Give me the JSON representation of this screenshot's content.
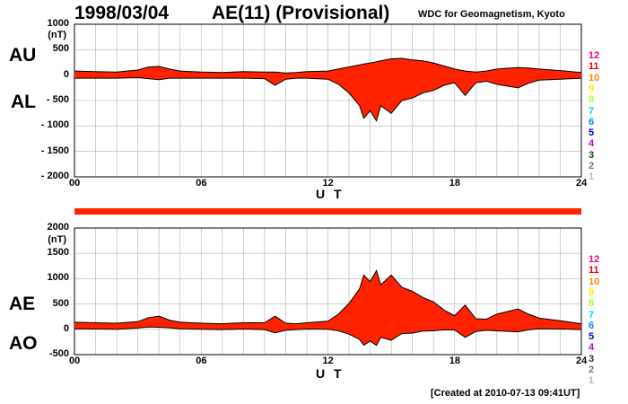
{
  "header": {
    "date": "1998/03/04",
    "title": "AE(11) (Provisional)",
    "institution": "WDC for Geomagnetism, Kyoto"
  },
  "footer": {
    "created": "[Created at 2010-07-13 09:41UT]"
  },
  "colors": {
    "fill": "#ff2200",
    "line": "#000000",
    "grid": "#b0b0b0",
    "bar": "#ff2200"
  },
  "station_count_scale": {
    "labels": [
      "12",
      "11",
      "10",
      "9",
      "8",
      "7",
      "6",
      "5",
      "4",
      "3",
      "2",
      "1"
    ],
    "colors": [
      "#ff0088",
      "#ee0000",
      "#ff8800",
      "#ffee00",
      "#aaff33",
      "#00dddd",
      "#0088ff",
      "#0000cc",
      "#cc00cc",
      "#333333",
      "#777777",
      "#bbbbbb"
    ]
  },
  "chart_data": [
    {
      "type": "area",
      "panel": "upper",
      "left_labels": [
        "AU",
        "AL"
      ],
      "unit": "(nT)",
      "xlabel": "U T",
      "xlim": [
        0,
        24
      ],
      "xticks": [
        "00",
        "06",
        "12",
        "18",
        "24"
      ],
      "ylim": [
        -2000,
        1000
      ],
      "yticks": [
        "1000",
        "500",
        "0",
        "- 500",
        "- 1000",
        "- 1500",
        "- 2000"
      ],
      "grid": true,
      "x": [
        0,
        1,
        2,
        3,
        3.5,
        4,
        4.5,
        5,
        6,
        7,
        8,
        9,
        9.5,
        10,
        10.5,
        11,
        12,
        12.5,
        13,
        13.5,
        13.7,
        14,
        14.3,
        14.5,
        15,
        15.5,
        16,
        16.5,
        17,
        17.5,
        18,
        18.5,
        19,
        19.5,
        20,
        21,
        21.5,
        22,
        23,
        24
      ],
      "series": [
        {
          "name": "AU",
          "values": [
            80,
            70,
            60,
            100,
            160,
            170,
            120,
            80,
            60,
            50,
            70,
            60,
            60,
            40,
            50,
            70,
            80,
            120,
            160,
            200,
            220,
            240,
            260,
            280,
            320,
            330,
            300,
            280,
            240,
            180,
            120,
            80,
            60,
            80,
            120,
            150,
            140,
            120,
            90,
            50
          ]
        },
        {
          "name": "AL",
          "values": [
            -60,
            -60,
            -60,
            -50,
            -70,
            -90,
            -60,
            -60,
            -60,
            -60,
            -60,
            -70,
            -200,
            -80,
            -60,
            -60,
            -80,
            -180,
            -350,
            -600,
            -850,
            -700,
            -900,
            -600,
            -750,
            -500,
            -450,
            -350,
            -300,
            -200,
            -150,
            -400,
            -150,
            -120,
            -180,
            -250,
            -160,
            -100,
            -80,
            -60
          ]
        }
      ]
    },
    {
      "type": "area",
      "panel": "lower",
      "left_labels": [
        "AE",
        "AO"
      ],
      "unit": "(nT)",
      "xlabel": "U T",
      "xlim": [
        0,
        24
      ],
      "xticks": [
        "00",
        "06",
        "12",
        "18",
        "24"
      ],
      "ylim": [
        -500,
        2000
      ],
      "yticks": [
        "2000",
        "1500",
        "1000",
        "500",
        "0",
        "-500"
      ],
      "grid": true,
      "x": [
        0,
        1,
        2,
        3,
        3.5,
        4,
        4.5,
        5,
        6,
        7,
        8,
        9,
        9.5,
        10,
        10.5,
        11,
        12,
        12.5,
        13,
        13.5,
        13.7,
        14,
        14.3,
        14.5,
        15,
        15.5,
        16,
        16.5,
        17,
        17.5,
        18,
        18.5,
        19,
        19.5,
        20,
        21,
        21.5,
        22,
        23,
        24
      ],
      "series": [
        {
          "name": "AE",
          "values": [
            140,
            130,
            120,
            150,
            230,
            260,
            180,
            140,
            120,
            110,
            130,
            130,
            260,
            120,
            110,
            130,
            160,
            300,
            510,
            800,
            1070,
            940,
            1160,
            880,
            1070,
            830,
            750,
            630,
            540,
            380,
            270,
            480,
            210,
            200,
            300,
            400,
            300,
            220,
            170,
            110
          ]
        },
        {
          "name": "AO",
          "values": [
            10,
            5,
            0,
            25,
            45,
            40,
            30,
            10,
            0,
            -5,
            5,
            -5,
            -70,
            -20,
            -5,
            5,
            0,
            -30,
            -95,
            -200,
            -315,
            -230,
            -320,
            -160,
            -215,
            -85,
            -75,
            -35,
            -30,
            -10,
            -15,
            -160,
            -45,
            -20,
            -30,
            -50,
            -10,
            10,
            5,
            -5
          ]
        }
      ]
    }
  ]
}
